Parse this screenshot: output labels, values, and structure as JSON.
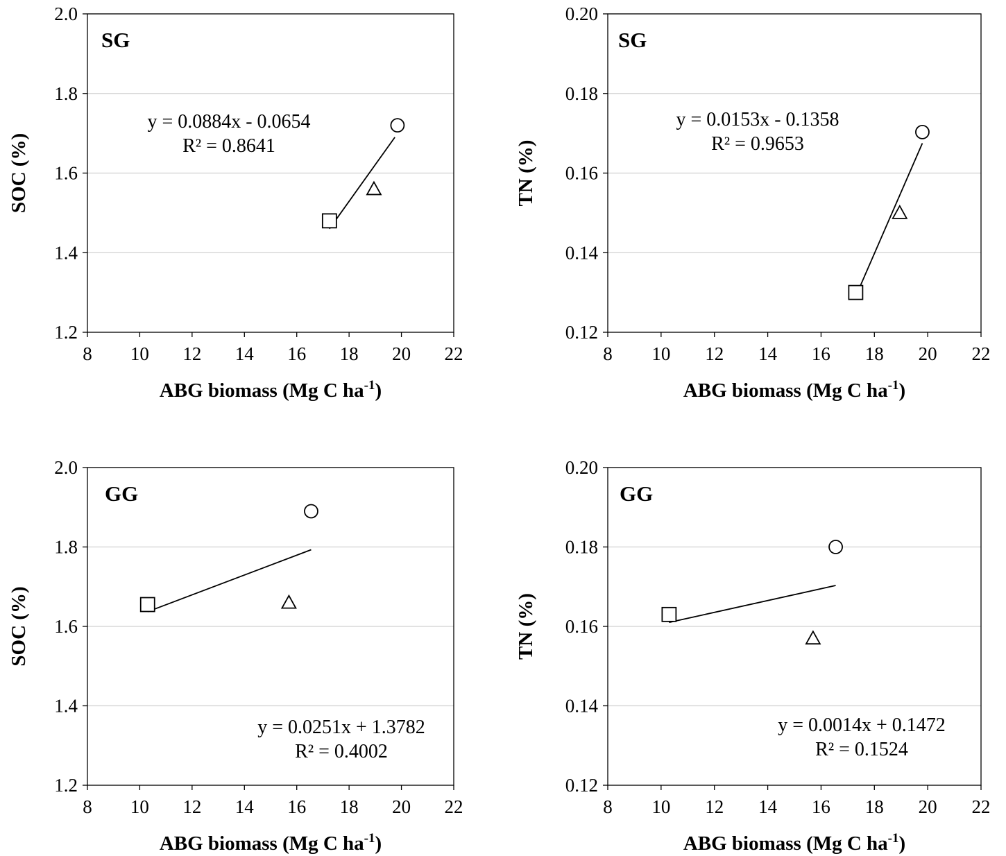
{
  "chart_data": [
    {
      "type": "scatter",
      "panel_label": "SG",
      "xlabel": "ABG biomass (Mg C ha",
      "xlabel_sup": "-1",
      "xlabel_end": ")",
      "ylabel": "SOC (%)",
      "xlim": [
        8,
        22
      ],
      "ylim": [
        1.2,
        2.0
      ],
      "xticks": [
        "8",
        "10",
        "12",
        "14",
        "16",
        "18",
        "20",
        "22"
      ],
      "yticks": [
        "1.2",
        "1.4",
        "1.6",
        "1.8",
        "2.0"
      ],
      "grid": true,
      "points": [
        {
          "marker": "square",
          "x": 17.25,
          "y": 1.48
        },
        {
          "marker": "triangle",
          "x": 18.95,
          "y": 1.56
        },
        {
          "marker": "circle",
          "x": 19.85,
          "y": 1.72
        }
      ],
      "trendline": {
        "x": [
          17.25,
          19.75
        ],
        "y": [
          1.46,
          1.69
        ]
      },
      "equation": "y = 0.0884x - 0.0654",
      "r2": "R² = 0.8641"
    },
    {
      "type": "scatter",
      "panel_label": "SG",
      "xlabel": "ABG biomass (Mg C ha",
      "xlabel_sup": "-1",
      "xlabel_end": ")",
      "ylabel": "TN (%)",
      "xlim": [
        8,
        22
      ],
      "ylim": [
        0.12,
        0.2
      ],
      "xticks": [
        "8",
        "10",
        "12",
        "14",
        "16",
        "18",
        "20",
        "22"
      ],
      "yticks": [
        "0.12",
        "0.14",
        "0.16",
        "0.18",
        "0.20"
      ],
      "grid": true,
      "points": [
        {
          "marker": "square",
          "x": 17.3,
          "y": 0.13
        },
        {
          "marker": "triangle",
          "x": 18.95,
          "y": 0.15
        },
        {
          "marker": "circle",
          "x": 19.8,
          "y": 0.1703
        }
      ],
      "trendline": {
        "x": [
          17.3,
          19.8
        ],
        "y": [
          0.129,
          0.1675
        ]
      },
      "equation": "y = 0.0153x - 0.1358",
      "r2": "R² = 0.9653"
    },
    {
      "type": "scatter",
      "panel_label": "GG",
      "xlabel": "ABG biomass (Mg C ha",
      "xlabel_sup": "-1",
      "xlabel_end": ")",
      "ylabel": "SOC (%)",
      "xlim": [
        8,
        22
      ],
      "ylim": [
        1.2,
        2.0
      ],
      "xticks": [
        "8",
        "10",
        "12",
        "14",
        "16",
        "18",
        "20",
        "22"
      ],
      "yticks": [
        "1.2",
        "1.4",
        "1.6",
        "1.8",
        "2.0"
      ],
      "grid": true,
      "points": [
        {
          "marker": "square",
          "x": 10.3,
          "y": 1.655
        },
        {
          "marker": "triangle",
          "x": 15.7,
          "y": 1.66
        },
        {
          "marker": "circle",
          "x": 16.55,
          "y": 1.89
        }
      ],
      "trendline": {
        "x": [
          10.3,
          16.55
        ],
        "y": [
          1.637,
          1.793
        ]
      },
      "equation": "y = 0.0251x + 1.3782",
      "r2": "R² = 0.4002"
    },
    {
      "type": "scatter",
      "panel_label": "GG",
      "xlabel": "ABG biomass (Mg C ha",
      "xlabel_sup": "-1",
      "xlabel_end": ")",
      "ylabel": "TN (%)",
      "xlim": [
        8,
        22
      ],
      "ylim": [
        0.12,
        0.2
      ],
      "xticks": [
        "8",
        "10",
        "12",
        "14",
        "16",
        "18",
        "20",
        "22"
      ],
      "yticks": [
        "0.12",
        "0.14",
        "0.16",
        "0.18",
        "0.20"
      ],
      "grid": true,
      "points": [
        {
          "marker": "square",
          "x": 10.3,
          "y": 0.163
        },
        {
          "marker": "triangle",
          "x": 15.7,
          "y": 0.157
        },
        {
          "marker": "circle",
          "x": 16.55,
          "y": 0.18
        }
      ],
      "trendline": {
        "x": [
          10.3,
          16.55
        ],
        "y": [
          0.161,
          0.1703
        ]
      },
      "equation": "y = 0.0014x + 0.1472",
      "r2": "R² = 0.1524"
    }
  ]
}
